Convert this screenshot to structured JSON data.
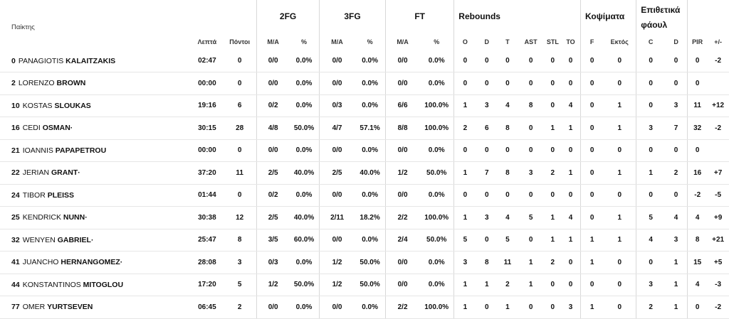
{
  "headers": {
    "players": "Παίκτης",
    "g_2fg": "2FG",
    "g_3fg": "3FG",
    "g_ft": "FT",
    "g_reb": "Rebounds",
    "g_blk": "Κοψίματα",
    "g_fouls": "Επιθετικά φάουλ",
    "min": "Λεπτά",
    "pts": "Πόντοι",
    "ma": "M/A",
    "pct": "%",
    "o": "O",
    "d": "D",
    "t": "T",
    "ast": "AST",
    "stl": "STL",
    "to": "TO",
    "f": "F",
    "ektos": "Εκτός",
    "c": "C",
    "dd": "D",
    "pir": "PIR",
    "pm": "+/-"
  },
  "players": [
    {
      "num": "0",
      "first": "PANAGIOTIS",
      "last": "KALAITZAKIS",
      "min": "02:47",
      "pts": "0",
      "fg2": "0/0",
      "fg2p": "0.0%",
      "fg3": "0/0",
      "fg3p": "0.0%",
      "ft": "0/0",
      "ftp": "0.0%",
      "o": "0",
      "d": "0",
      "t": "0",
      "ast": "0",
      "stl": "0",
      "to": "0",
      "f": "0",
      "ek": "0",
      "c": "0",
      "dd": "0",
      "pir": "0",
      "pm": "-2"
    },
    {
      "num": "2",
      "first": "LORENZO",
      "last": "BROWN",
      "min": "00:00",
      "pts": "0",
      "fg2": "0/0",
      "fg2p": "0.0%",
      "fg3": "0/0",
      "fg3p": "0.0%",
      "ft": "0/0",
      "ftp": "0.0%",
      "o": "0",
      "d": "0",
      "t": "0",
      "ast": "0",
      "stl": "0",
      "to": "0",
      "f": "0",
      "ek": "0",
      "c": "0",
      "dd": "0",
      "pir": "0",
      "pm": ""
    },
    {
      "num": "10",
      "first": "KOSTAS",
      "last": "SLOUKAS",
      "min": "19:16",
      "pts": "6",
      "fg2": "0/2",
      "fg2p": "0.0%",
      "fg3": "0/3",
      "fg3p": "0.0%",
      "ft": "6/6",
      "ftp": "100.0%",
      "o": "1",
      "d": "3",
      "t": "4",
      "ast": "8",
      "stl": "0",
      "to": "4",
      "f": "0",
      "ek": "1",
      "c": "0",
      "dd": "3",
      "pir": "11",
      "pm": "+12"
    },
    {
      "num": "16",
      "first": "CEDI",
      "last": "OSMAN·",
      "min": "30:15",
      "pts": "28",
      "fg2": "4/8",
      "fg2p": "50.0%",
      "fg3": "4/7",
      "fg3p": "57.1%",
      "ft": "8/8",
      "ftp": "100.0%",
      "o": "2",
      "d": "6",
      "t": "8",
      "ast": "0",
      "stl": "1",
      "to": "1",
      "f": "0",
      "ek": "1",
      "c": "3",
      "dd": "7",
      "pir": "32",
      "pm": "-2"
    },
    {
      "num": "21",
      "first": "IOANNIS",
      "last": "PAPAPETROU",
      "min": "00:00",
      "pts": "0",
      "fg2": "0/0",
      "fg2p": "0.0%",
      "fg3": "0/0",
      "fg3p": "0.0%",
      "ft": "0/0",
      "ftp": "0.0%",
      "o": "0",
      "d": "0",
      "t": "0",
      "ast": "0",
      "stl": "0",
      "to": "0",
      "f": "0",
      "ek": "0",
      "c": "0",
      "dd": "0",
      "pir": "0",
      "pm": ""
    },
    {
      "num": "22",
      "first": "JERIAN",
      "last": "GRANT·",
      "min": "37:20",
      "pts": "11",
      "fg2": "2/5",
      "fg2p": "40.0%",
      "fg3": "2/5",
      "fg3p": "40.0%",
      "ft": "1/2",
      "ftp": "50.0%",
      "o": "1",
      "d": "7",
      "t": "8",
      "ast": "3",
      "stl": "2",
      "to": "1",
      "f": "0",
      "ek": "1",
      "c": "1",
      "dd": "2",
      "pir": "16",
      "pm": "+7"
    },
    {
      "num": "24",
      "first": "TIBOR",
      "last": "PLEISS",
      "min": "01:44",
      "pts": "0",
      "fg2": "0/2",
      "fg2p": "0.0%",
      "fg3": "0/0",
      "fg3p": "0.0%",
      "ft": "0/0",
      "ftp": "0.0%",
      "o": "0",
      "d": "0",
      "t": "0",
      "ast": "0",
      "stl": "0",
      "to": "0",
      "f": "0",
      "ek": "0",
      "c": "0",
      "dd": "0",
      "pir": "-2",
      "pm": "-5"
    },
    {
      "num": "25",
      "first": "KENDRICK",
      "last": "NUNN·",
      "min": "30:38",
      "pts": "12",
      "fg2": "2/5",
      "fg2p": "40.0%",
      "fg3": "2/11",
      "fg3p": "18.2%",
      "ft": "2/2",
      "ftp": "100.0%",
      "o": "1",
      "d": "3",
      "t": "4",
      "ast": "5",
      "stl": "1",
      "to": "4",
      "f": "0",
      "ek": "1",
      "c": "5",
      "dd": "4",
      "pir": "4",
      "pm": "+9"
    },
    {
      "num": "32",
      "first": "WENYEN",
      "last": "GABRIEL·",
      "min": "25:47",
      "pts": "8",
      "fg2": "3/5",
      "fg2p": "60.0%",
      "fg3": "0/0",
      "fg3p": "0.0%",
      "ft": "2/4",
      "ftp": "50.0%",
      "o": "5",
      "d": "0",
      "t": "5",
      "ast": "0",
      "stl": "1",
      "to": "1",
      "f": "1",
      "ek": "1",
      "c": "4",
      "dd": "3",
      "pir": "8",
      "pm": "+21"
    },
    {
      "num": "41",
      "first": "JUANCHO",
      "last": "HERNANGOMEZ·",
      "min": "28:08",
      "pts": "3",
      "fg2": "0/3",
      "fg2p": "0.0%",
      "fg3": "1/2",
      "fg3p": "50.0%",
      "ft": "0/0",
      "ftp": "0.0%",
      "o": "3",
      "d": "8",
      "t": "11",
      "ast": "1",
      "stl": "2",
      "to": "0",
      "f": "1",
      "ek": "0",
      "c": "0",
      "dd": "1",
      "pir": "15",
      "pm": "+5"
    },
    {
      "num": "44",
      "first": "KONSTANTINOS",
      "last": "MITOGLOU",
      "min": "17:20",
      "pts": "5",
      "fg2": "1/2",
      "fg2p": "50.0%",
      "fg3": "1/2",
      "fg3p": "50.0%",
      "ft": "0/0",
      "ftp": "0.0%",
      "o": "1",
      "d": "1",
      "t": "2",
      "ast": "1",
      "stl": "0",
      "to": "0",
      "f": "0",
      "ek": "0",
      "c": "3",
      "dd": "1",
      "pir": "4",
      "pm": "-3"
    },
    {
      "num": "77",
      "first": "OMER",
      "last": "YURTSEVEN",
      "min": "06:45",
      "pts": "2",
      "fg2": "0/0",
      "fg2p": "0.0%",
      "fg3": "0/0",
      "fg3p": "0.0%",
      "ft": "2/2",
      "ftp": "100.0%",
      "o": "1",
      "d": "0",
      "t": "1",
      "ast": "0",
      "stl": "0",
      "to": "3",
      "f": "1",
      "ek": "0",
      "c": "2",
      "dd": "1",
      "pir": "0",
      "pm": "-2"
    }
  ]
}
